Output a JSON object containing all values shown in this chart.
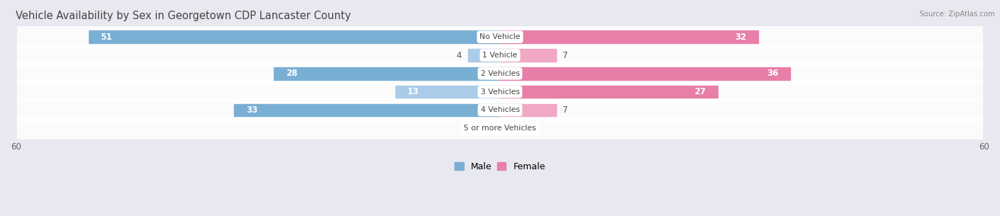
{
  "title": "Vehicle Availability by Sex in Georgetown CDP Lancaster County",
  "source": "Source: ZipAtlas.com",
  "categories": [
    "No Vehicle",
    "1 Vehicle",
    "2 Vehicles",
    "3 Vehicles",
    "4 Vehicles",
    "5 or more Vehicles"
  ],
  "male_values": [
    51,
    4,
    28,
    13,
    33,
    0
  ],
  "female_values": [
    32,
    7,
    36,
    27,
    7,
    0
  ],
  "male_color": "#7aafd4",
  "female_color": "#e87fa8",
  "male_color_light": "#aacce8",
  "female_color_light": "#f0a8c4",
  "axis_max": 60,
  "bg_color": "#e8e8f0",
  "row_bg_even": "#ffffff",
  "row_bg_odd": "#f0f0f5",
  "title_color": "#444444",
  "label_color": "#555555",
  "title_fontsize": 10.5,
  "label_fontsize": 8.5,
  "value_fontsize": 8.5
}
